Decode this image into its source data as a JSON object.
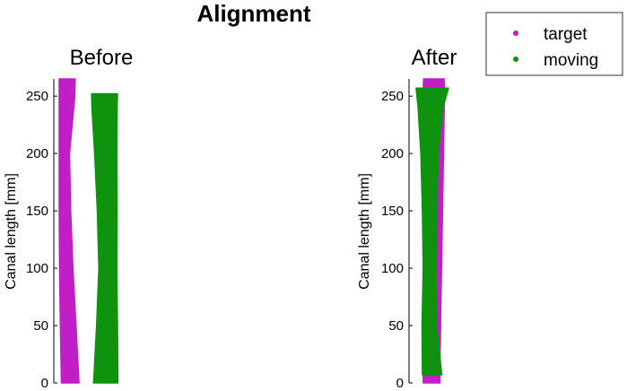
{
  "figure": {
    "suptitle": "Alignment",
    "colors": {
      "target": "#c21ec8",
      "moving": "#0f930f",
      "axis": "#000000"
    }
  },
  "legend": {
    "placement": "top-right",
    "entries": [
      {
        "label": "target",
        "color": "#c21ec8"
      },
      {
        "label": "moving",
        "color": "#0f930f"
      }
    ]
  },
  "chart_data": [
    {
      "type": "scatter",
      "title": "Before",
      "xlabel": "",
      "ylabel": "Canal length [mm]",
      "ylim": [
        0,
        265
      ],
      "yticks": [
        "0",
        "50",
        "100",
        "150",
        "200",
        "250"
      ],
      "grid": false,
      "series": [
        {
          "name": "target",
          "color": "#c21ec8",
          "profile": [
            {
              "y": 0,
              "left": 0.3,
              "right": 2.6
            },
            {
              "y": 50,
              "left": 0.15,
              "right": 2.2
            },
            {
              "y": 100,
              "left": 0.05,
              "right": 1.8
            },
            {
              "y": 150,
              "left": 0.0,
              "right": 1.5
            },
            {
              "y": 200,
              "left": 0.0,
              "right": 1.35
            },
            {
              "y": 250,
              "left": 0.0,
              "right": 2.05
            },
            {
              "y": 265,
              "left": 0.0,
              "right": 2.1
            }
          ]
        },
        {
          "name": "moving",
          "color": "#0f930f",
          "profile": [
            {
              "y": 0,
              "left": 4.5,
              "right": 7.7
            },
            {
              "y": 50,
              "left": 4.9,
              "right": 7.65
            },
            {
              "y": 100,
              "left": 5.2,
              "right": 7.55
            },
            {
              "y": 150,
              "left": 5.0,
              "right": 7.6
            },
            {
              "y": 200,
              "left": 4.65,
              "right": 7.55
            },
            {
              "y": 240,
              "left": 4.3,
              "right": 7.6
            },
            {
              "y": 252,
              "left": 4.25,
              "right": 7.65
            }
          ]
        }
      ]
    },
    {
      "type": "scatter",
      "title": "After",
      "xlabel": "",
      "ylabel": "Canal length [mm]",
      "ylim": [
        0,
        265
      ],
      "yticks": [
        "0",
        "50",
        "100",
        "150",
        "200",
        "250"
      ],
      "grid": false,
      "series": [
        {
          "name": "target",
          "color": "#c21ec8",
          "profile": [
            {
              "y": 0,
              "left": 1.0,
              "right": 3.1
            },
            {
              "y": 10,
              "left": 1.0,
              "right": 3.1
            },
            {
              "y": 255,
              "left": 1.0,
              "right": 3.7
            },
            {
              "y": 265,
              "left": 1.05,
              "right": 3.65
            }
          ]
        },
        {
          "name": "moving",
          "color": "#0f930f",
          "profile": [
            {
              "y": 7,
              "left": 0.9,
              "right": 3.35
            },
            {
              "y": 50,
              "left": 0.85,
              "right": 2.7
            },
            {
              "y": 100,
              "left": 1.0,
              "right": 2.6
            },
            {
              "y": 150,
              "left": 0.9,
              "right": 2.75
            },
            {
              "y": 200,
              "left": 0.7,
              "right": 2.9
            },
            {
              "y": 240,
              "left": 0.35,
              "right": 3.5
            },
            {
              "y": 257,
              "left": 0.1,
              "right": 4.2
            }
          ]
        }
      ]
    }
  ]
}
